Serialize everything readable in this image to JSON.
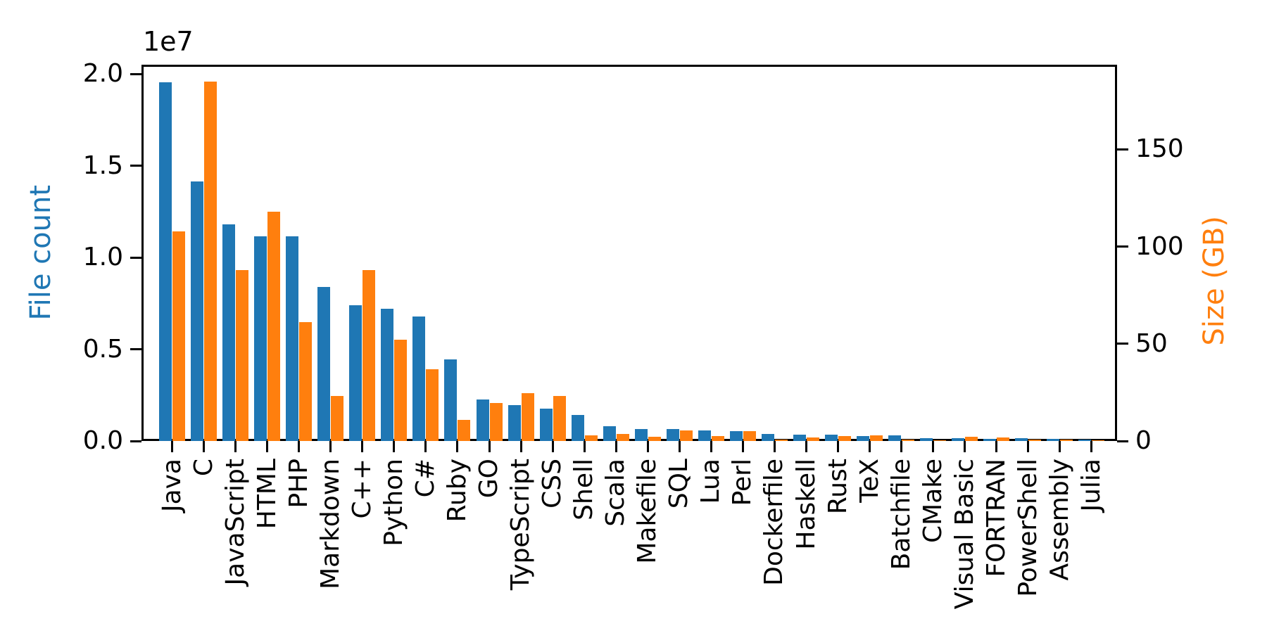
{
  "figure": {
    "offset_text": "1e7",
    "left_axis": {
      "label": "File count",
      "color": "#1f77b4",
      "tick_labels": [
        "0.0",
        "0.5",
        "1.0",
        "1.5",
        "2.0"
      ],
      "tick_values": [
        0,
        5000000,
        10000000,
        15000000,
        20000000
      ]
    },
    "right_axis": {
      "label": "Size (GB)",
      "color": "#ff7f0e",
      "tick_labels": [
        "0",
        "50",
        "100",
        "150"
      ],
      "tick_values": [
        0,
        50,
        100,
        150
      ]
    }
  },
  "chart_data": {
    "type": "bar",
    "categories": [
      "Java",
      "C",
      "JavaScript",
      "HTML",
      "PHP",
      "Markdown",
      "C++",
      "Python",
      "C#",
      "Ruby",
      "GO",
      "TypeScript",
      "CSS",
      "Shell",
      "Scala",
      "Makefile",
      "SQL",
      "Lua",
      "Perl",
      "Dockerfile",
      "Haskell",
      "Rust",
      "TeX",
      "Batchfile",
      "CMake",
      "Visual Basic",
      "FORTRAN",
      "PowerShell",
      "Assembly",
      "Julia"
    ],
    "series": [
      {
        "name": "File count",
        "axis": "left",
        "color": "#1f77b4",
        "values": [
          19550000,
          14150000,
          11800000,
          11160000,
          11160000,
          8400000,
          7380000,
          7220000,
          6790000,
          4460000,
          2260000,
          1950000,
          1750000,
          1400000,
          820000,
          660000,
          650000,
          580000,
          520000,
          370000,
          330000,
          330000,
          260000,
          290000,
          170000,
          140000,
          120000,
          140000,
          110000,
          60000
        ]
      },
      {
        "name": "Size (GB)",
        "axis": "right",
        "color": "#ff7f0e",
        "values": [
          108,
          185,
          88,
          118,
          61,
          23,
          88,
          52,
          37,
          11,
          19.5,
          24.5,
          23,
          3,
          3.6,
          2.3,
          5.5,
          2.6,
          4.9,
          0.7,
          1.9,
          2.5,
          3.0,
          0.7,
          0.5,
          2.1,
          1.7,
          0.7,
          0.9,
          0.3
        ]
      }
    ],
    "ylabel_left": "File count",
    "ylabel_right": "Size (GB)",
    "ylim_left": [
      0,
      20500000
    ],
    "ylim_right": [
      0,
      193.6
    ],
    "left_axis_multiplier": "1e7",
    "x_tick_rotation": 90,
    "grid": false,
    "legend": false
  }
}
